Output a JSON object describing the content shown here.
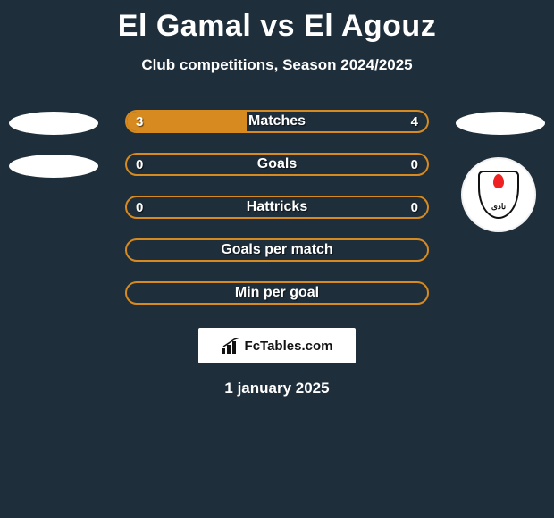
{
  "title": {
    "player1": "El Gamal",
    "vs": "vs",
    "player2": "El Agouz",
    "color": "#ffffff",
    "fontsize": 34
  },
  "subtitle": {
    "text": "Club competitions, Season 2024/2025",
    "fontsize": 17
  },
  "background_color": "#1e2e3a",
  "bar_style": {
    "height": 26,
    "border_radius": 14,
    "label_fontsize": 16,
    "value_fontsize": 15
  },
  "stats": [
    {
      "key": "matches",
      "label": "Matches",
      "left_value": "3",
      "right_value": "4",
      "fill_pct": 40,
      "fill_color": "#d78a1f",
      "border_color": "#d78a1f",
      "left_shape": "ellipse",
      "right_shape": "ellipse"
    },
    {
      "key": "goals",
      "label": "Goals",
      "left_value": "0",
      "right_value": "0",
      "fill_pct": 0,
      "fill_color": "#d78a1f",
      "border_color": "#d78a1f",
      "left_shape": "ellipse",
      "right_shape": "badge"
    },
    {
      "key": "hattricks",
      "label": "Hattricks",
      "left_value": "0",
      "right_value": "0",
      "fill_pct": 0,
      "fill_color": "#d78a1f",
      "border_color": "#d78a1f",
      "left_shape": "none",
      "right_shape": "none"
    },
    {
      "key": "goals_per_match",
      "label": "Goals per match",
      "left_value": "",
      "right_value": "",
      "fill_pct": 0,
      "fill_color": "#d78a1f",
      "border_color": "#d78a1f",
      "left_shape": "none",
      "right_shape": "none"
    },
    {
      "key": "min_per_goal",
      "label": "Min per goal",
      "left_value": "",
      "right_value": "",
      "fill_pct": 0,
      "fill_color": "#d78a1f",
      "border_color": "#d78a1f",
      "left_shape": "none",
      "right_shape": "none"
    }
  ],
  "branding": {
    "icon": "bar-chart-icon",
    "text": "FcTables.com",
    "bg_color": "#ffffff",
    "text_color": "#111111"
  },
  "date": "1 january 2025",
  "badge": {
    "bg_color": "#ffffff",
    "flame_color": "#e22222",
    "outline_color": "#111111",
    "text": "نادى"
  }
}
